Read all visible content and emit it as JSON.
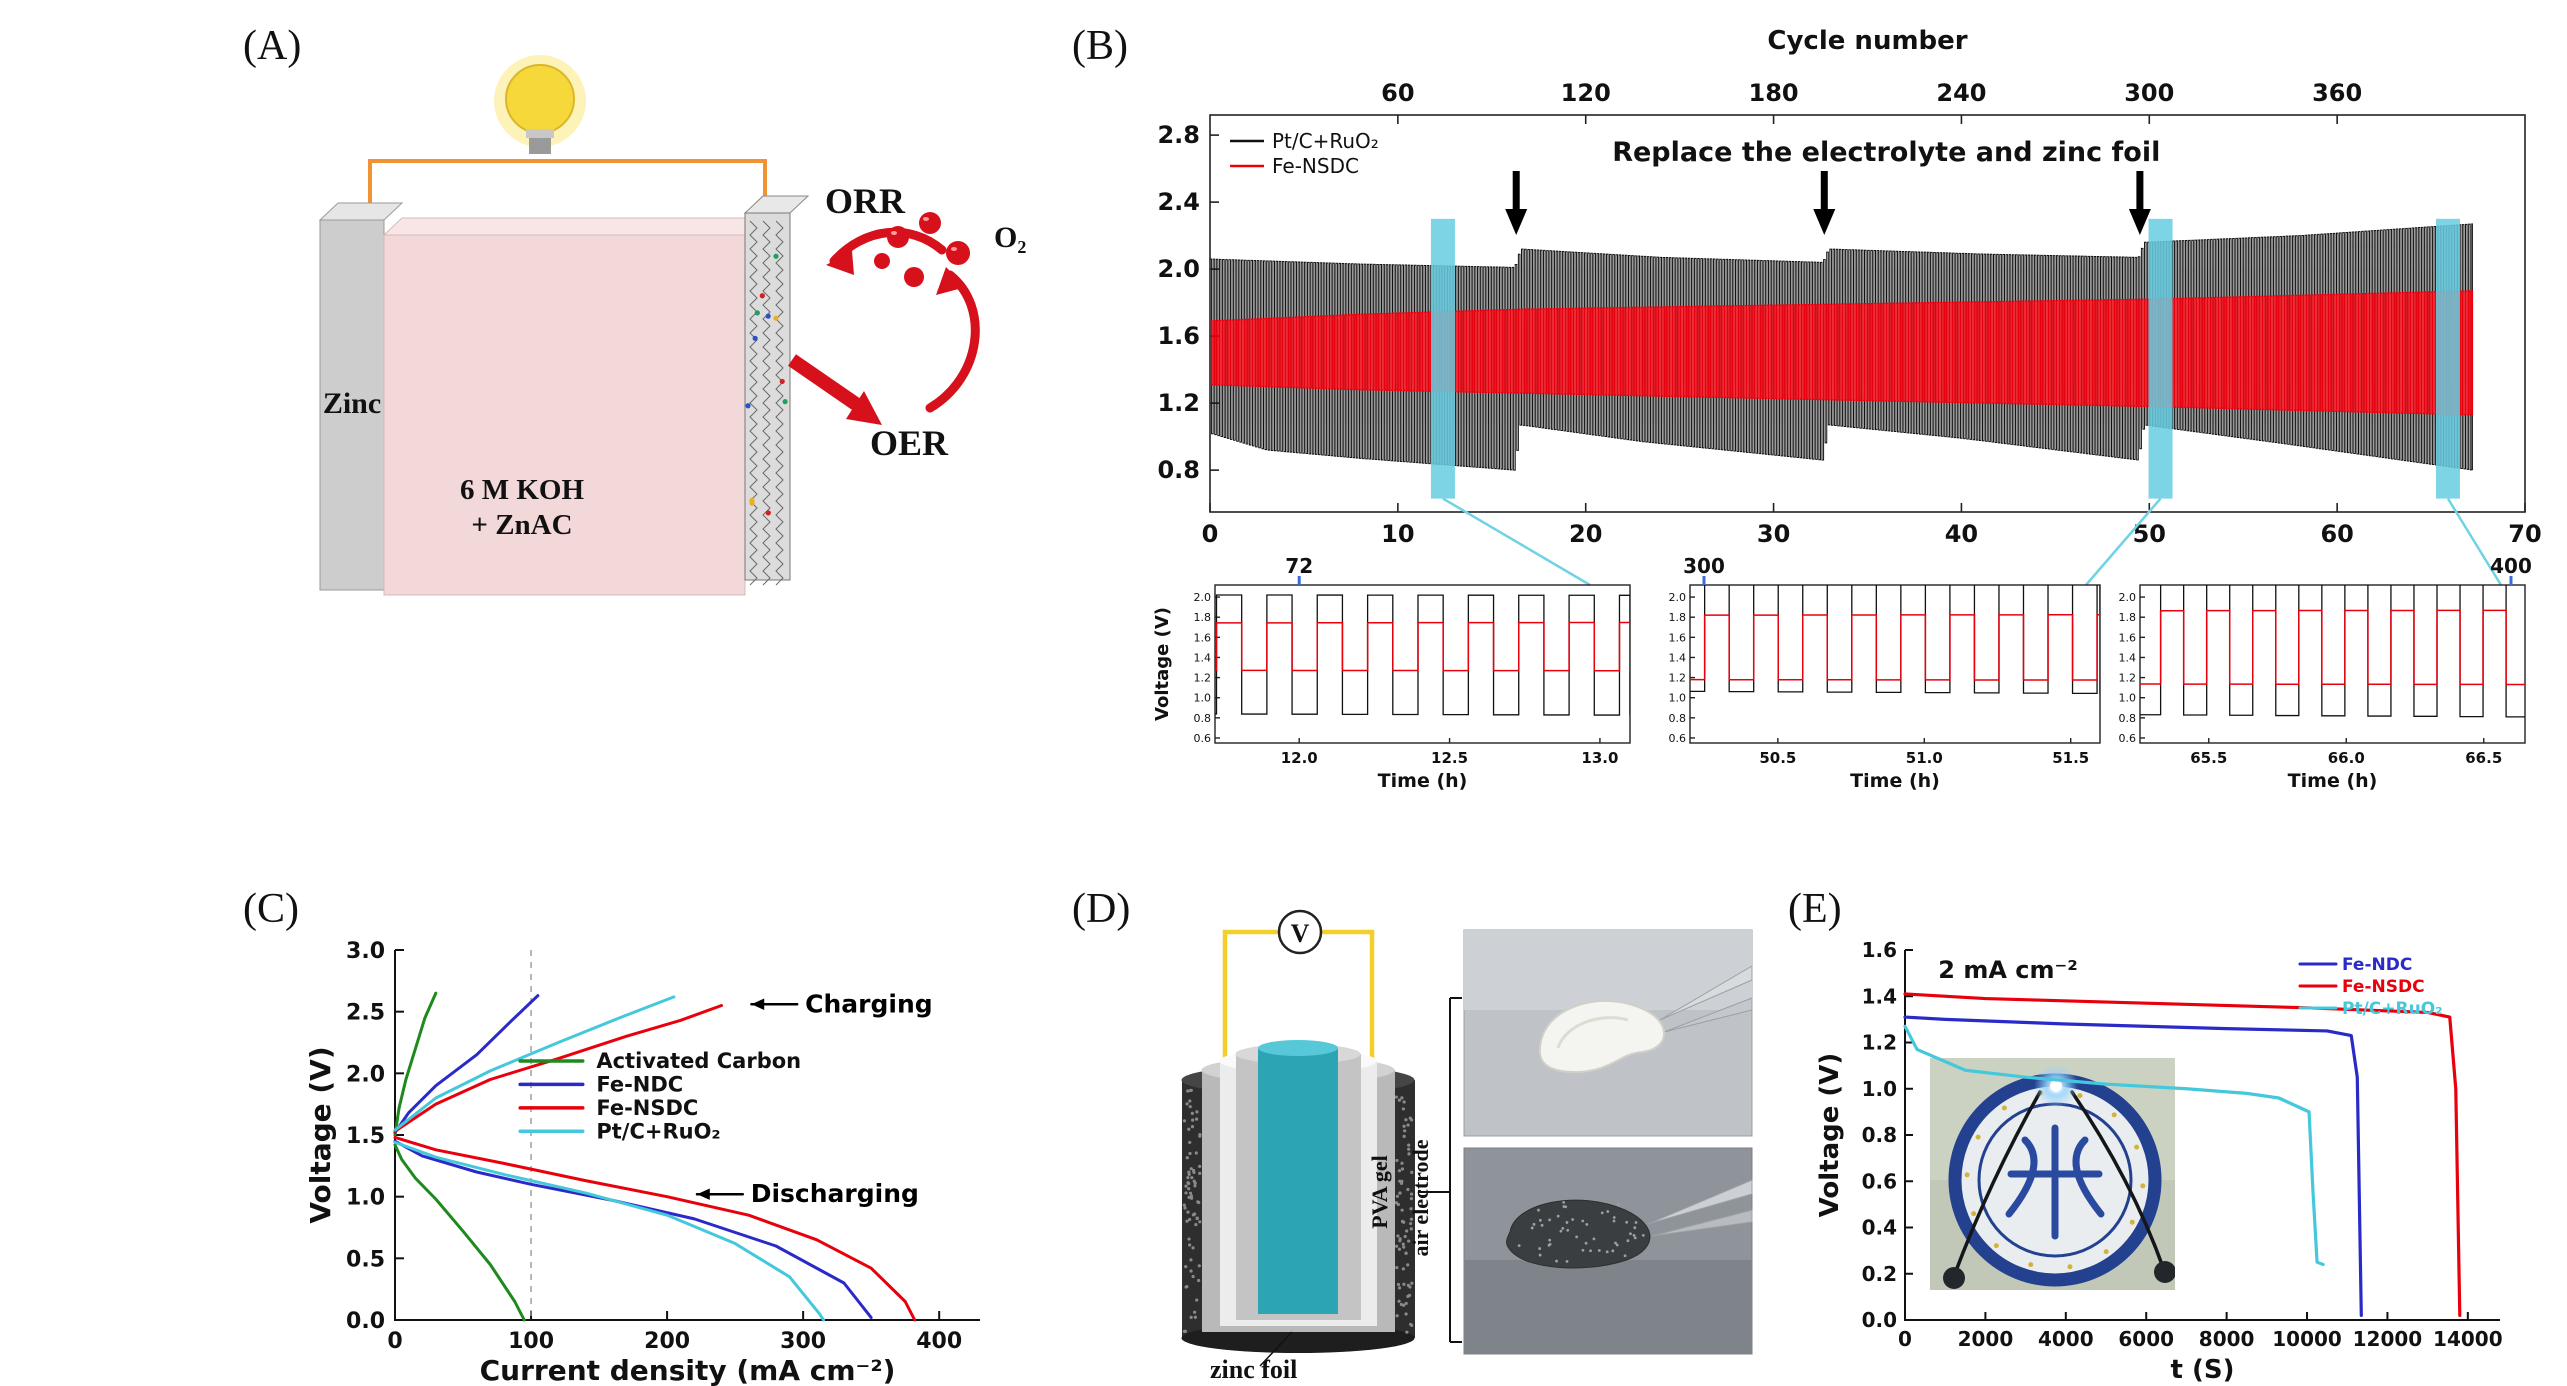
{
  "figure": {
    "panels": {
      "a": {
        "label": "(A)",
        "zinc": "Zinc",
        "electrolyte_line1": "6 M KOH",
        "electrolyte_line2": "+ ZnAC",
        "orr": "ORR",
        "oer": "OER",
        "o2": "O₂"
      },
      "b": {
        "label": "(B)"
      },
      "c": {
        "label": "(C)"
      },
      "d": {
        "label": "(D)",
        "voltmeter": "V",
        "pva_gel": "PVA gel",
        "air_electrode": "air electrode",
        "zinc_foil": "zinc foil"
      },
      "e": {
        "label": "(E)"
      }
    },
    "colors": {
      "red": "#e8000d",
      "black": "#111111",
      "blue": "#2a2ac8",
      "cyan": "#45c8dc",
      "green": "#1e8a1e",
      "highlight": "#66cde0"
    }
  },
  "chart_data": [
    {
      "id": "cycling-stability",
      "panel": "B",
      "type": "line",
      "top_axis": {
        "title": "Cycle number",
        "ticks": [
          60,
          120,
          180,
          240,
          300,
          360
        ],
        "cycles_per_hour": 6
      },
      "xlim": [
        0,
        70
      ],
      "xticks": [
        0,
        10,
        20,
        30,
        40,
        50,
        60,
        70
      ],
      "ylim": [
        0.55,
        2.92
      ],
      "yticks": [
        2.8,
        2.4,
        2.0,
        1.6,
        1.2,
        0.8
      ],
      "data_end_h": 67.2,
      "cycle_period_h": 0.1675,
      "annotation": {
        "text": "Replace the electrolyte and zinc foil",
        "arrow_times_h": [
          16.3,
          32.7,
          49.5
        ]
      },
      "highlight": {
        "times_h": [
          12.4,
          50.6,
          65.9
        ],
        "color": "#66cde0"
      },
      "series": [
        {
          "name": "Pt/C+RuO₂",
          "color": "#111111",
          "charge_envelope": [
            [
              0,
              2.06
            ],
            [
              8,
              2.03
            ],
            [
              16.2,
              2.01
            ],
            [
              16.5,
              2.12
            ],
            [
              24,
              2.07
            ],
            [
              32.6,
              2.04
            ],
            [
              32.9,
              2.12
            ],
            [
              41,
              2.09
            ],
            [
              49.4,
              2.07
            ],
            [
              49.7,
              2.16
            ],
            [
              58,
              2.2
            ],
            [
              67.2,
              2.27
            ]
          ],
          "discharge_envelope": [
            [
              0,
              1.02
            ],
            [
              3,
              0.92
            ],
            [
              8,
              0.87
            ],
            [
              16.2,
              0.8
            ],
            [
              16.5,
              1.07
            ],
            [
              23,
              0.97
            ],
            [
              32.6,
              0.86
            ],
            [
              32.9,
              1.07
            ],
            [
              40,
              0.99
            ],
            [
              49.4,
              0.86
            ],
            [
              49.7,
              1.07
            ],
            [
              57,
              0.96
            ],
            [
              67.2,
              0.8
            ]
          ]
        },
        {
          "name": "Fe-NSDC",
          "color": "#e8000d",
          "charge_envelope": [
            [
              0,
              1.69
            ],
            [
              8,
              1.73
            ],
            [
              16.5,
              1.76
            ],
            [
              33,
              1.79
            ],
            [
              50,
              1.82
            ],
            [
              67.2,
              1.87
            ]
          ],
          "discharge_envelope": [
            [
              0,
              1.31
            ],
            [
              8,
              1.28
            ],
            [
              16.5,
              1.26
            ],
            [
              33,
              1.22
            ],
            [
              50,
              1.18
            ],
            [
              67.2,
              1.13
            ]
          ]
        }
      ],
      "insets": [
        {
          "cycle_label": "72",
          "label_t_h": 12.0,
          "xlim": [
            11.72,
            13.1
          ],
          "xticks": [
            12.0,
            12.5,
            13.0
          ],
          "xlabel": "Time (h)",
          "ylabel": "Voltage (V)",
          "ylim": [
            0.55,
            2.12
          ],
          "yticks": [
            2.0,
            1.8,
            1.6,
            1.4,
            1.2,
            1.0,
            0.8,
            0.6
          ]
        },
        {
          "cycle_label": "300",
          "label_t_h": 50.0,
          "xlim": [
            50.2,
            51.6
          ],
          "xticks": [
            50.5,
            51.0,
            51.5
          ],
          "xlabel": "Time (h)",
          "ylim": [
            0.55,
            2.12
          ],
          "yticks": [
            2.0,
            1.8,
            1.6,
            1.4,
            1.2,
            1.0,
            0.8,
            0.6
          ]
        },
        {
          "cycle_label": "400",
          "label_t_h": 66.6,
          "xlim": [
            65.25,
            66.65
          ],
          "xticks": [
            65.5,
            66.0,
            66.5
          ],
          "xlabel": "Time (h)",
          "ylim": [
            0.55,
            2.12
          ],
          "yticks": [
            2.0,
            1.8,
            1.6,
            1.4,
            1.2,
            1.0,
            0.8,
            0.6
          ]
        }
      ]
    },
    {
      "id": "polarization",
      "panel": "C",
      "type": "line",
      "xlabel": "Current density (mA cm⁻²)",
      "ylabel": "Voltage (V)",
      "xlim": [
        0,
        430
      ],
      "xticks": [
        0,
        100,
        200,
        300,
        400
      ],
      "ylim": [
        0,
        3.0
      ],
      "yticks": [
        0.0,
        0.5,
        1.0,
        1.5,
        2.0,
        2.5,
        3.0
      ],
      "dashed_x": 100,
      "annotations": [
        {
          "text": "Charging",
          "tip": [
            262,
            2.56
          ],
          "text_at": [
            300,
            2.56
          ]
        },
        {
          "text": "Discharging",
          "tip": [
            222,
            1.02
          ],
          "text_at": [
            260,
            1.02
          ]
        }
      ],
      "legend": {
        "x_line": [
          92,
          138
        ],
        "x_text": 148,
        "rows_v": [
          2.1,
          1.91,
          1.72,
          1.53
        ]
      },
      "series": [
        {
          "name": "Activated Carbon",
          "color": "#1e8a1e",
          "charge": [
            [
              0,
              1.5
            ],
            [
              3,
              1.72
            ],
            [
              8,
              1.95
            ],
            [
              15,
              2.2
            ],
            [
              22,
              2.45
            ],
            [
              30,
              2.65
            ]
          ],
          "discharge": [
            [
              0,
              1.42
            ],
            [
              5,
              1.3
            ],
            [
              15,
              1.15
            ],
            [
              30,
              0.98
            ],
            [
              50,
              0.72
            ],
            [
              70,
              0.45
            ],
            [
              88,
              0.15
            ],
            [
              95,
              0.0
            ]
          ]
        },
        {
          "name": "Fe-NDC",
          "color": "#2a2ac8",
          "charge": [
            [
              0,
              1.52
            ],
            [
              10,
              1.68
            ],
            [
              30,
              1.9
            ],
            [
              60,
              2.15
            ],
            [
              85,
              2.42
            ],
            [
              105,
              2.63
            ]
          ],
          "discharge": [
            [
              0,
              1.45
            ],
            [
              20,
              1.33
            ],
            [
              60,
              1.2
            ],
            [
              100,
              1.1
            ],
            [
              160,
              0.97
            ],
            [
              220,
              0.82
            ],
            [
              280,
              0.6
            ],
            [
              330,
              0.3
            ],
            [
              350,
              0.02
            ]
          ]
        },
        {
          "name": "Fe-NSDC",
          "color": "#e8000d",
          "charge": [
            [
              0,
              1.53
            ],
            [
              30,
              1.75
            ],
            [
              70,
              1.95
            ],
            [
              120,
              2.12
            ],
            [
              170,
              2.3
            ],
            [
              210,
              2.43
            ],
            [
              240,
              2.55
            ]
          ],
          "discharge": [
            [
              0,
              1.48
            ],
            [
              30,
              1.38
            ],
            [
              80,
              1.27
            ],
            [
              140,
              1.13
            ],
            [
              200,
              1.0
            ],
            [
              260,
              0.85
            ],
            [
              310,
              0.65
            ],
            [
              350,
              0.42
            ],
            [
              375,
              0.15
            ],
            [
              382,
              0.0
            ]
          ]
        },
        {
          "name": "Pt/C+RuO₂",
          "color": "#45c8dc",
          "charge": [
            [
              0,
              1.54
            ],
            [
              30,
              1.8
            ],
            [
              70,
              2.02
            ],
            [
              120,
              2.25
            ],
            [
              165,
              2.45
            ],
            [
              205,
              2.62
            ]
          ],
          "discharge": [
            [
              0,
              1.44
            ],
            [
              30,
              1.32
            ],
            [
              80,
              1.18
            ],
            [
              140,
              1.03
            ],
            [
              200,
              0.85
            ],
            [
              250,
              0.62
            ],
            [
              290,
              0.35
            ],
            [
              312,
              0.05
            ],
            [
              315,
              0.0
            ]
          ]
        }
      ]
    },
    {
      "id": "galvanostatic-discharge",
      "panel": "E",
      "type": "line",
      "xlabel": "t (S)",
      "ylabel": "Voltage (V)",
      "xlim": [
        0,
        14800
      ],
      "xticks": [
        0,
        2000,
        4000,
        6000,
        8000,
        10000,
        12000,
        14000
      ],
      "ylim": [
        0,
        1.6
      ],
      "yticks": [
        0.0,
        0.2,
        0.4,
        0.6,
        0.8,
        1.0,
        1.2,
        1.4,
        1.6
      ],
      "annotation": "2 mA cm⁻²",
      "series": [
        {
          "name": "Fe-NDC",
          "color": "#2a2ac8",
          "points": [
            [
              0,
              1.31
            ],
            [
              1000,
              1.3
            ],
            [
              4000,
              1.28
            ],
            [
              8000,
              1.26
            ],
            [
              10500,
              1.25
            ],
            [
              11100,
              1.23
            ],
            [
              11250,
              1.05
            ],
            [
              11350,
              0.02
            ]
          ]
        },
        {
          "name": "Fe-NSDC",
          "color": "#e8000d",
          "points": [
            [
              0,
              1.41
            ],
            [
              2000,
              1.39
            ],
            [
              6000,
              1.37
            ],
            [
              10000,
              1.35
            ],
            [
              13000,
              1.33
            ],
            [
              13550,
              1.31
            ],
            [
              13700,
              1.0
            ],
            [
              13800,
              0.02
            ]
          ]
        },
        {
          "name": "Pt/C+RuO₂",
          "color": "#45c8dc",
          "points": [
            [
              0,
              1.27
            ],
            [
              300,
              1.17
            ],
            [
              1500,
              1.08
            ],
            [
              3000,
              1.05
            ],
            [
              5000,
              1.02
            ],
            [
              7000,
              1.0
            ],
            [
              8500,
              0.98
            ],
            [
              9300,
              0.96
            ],
            [
              9800,
              0.92
            ],
            [
              10050,
              0.9
            ],
            [
              10150,
              0.55
            ],
            [
              10250,
              0.25
            ],
            [
              10400,
              0.24
            ]
          ]
        }
      ]
    }
  ]
}
